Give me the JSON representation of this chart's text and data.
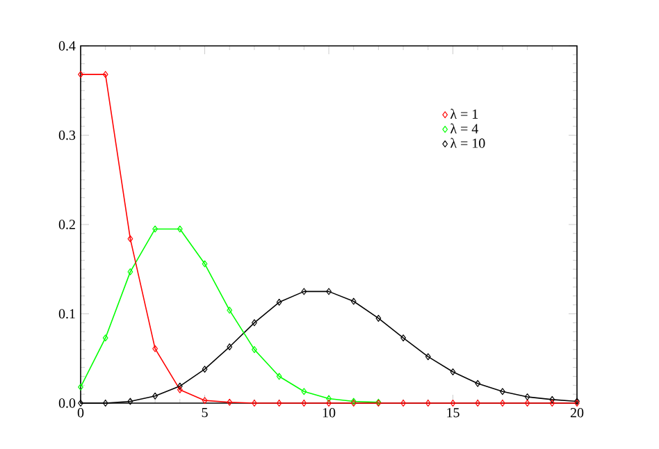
{
  "chart_data": {
    "type": "line",
    "marker": "diamond",
    "line_style": "solid",
    "legend": "top right",
    "x": [
      0,
      1,
      2,
      3,
      4,
      5,
      6,
      7,
      8,
      9,
      10,
      11,
      12,
      13,
      14,
      15,
      16,
      17,
      18,
      19,
      20
    ],
    "series": [
      {
        "name": "λ = 1",
        "color": "#ff0000",
        "values": [
          0.368,
          0.368,
          0.184,
          0.061,
          0.015,
          0.003,
          0.001,
          0,
          0,
          0,
          0,
          0,
          0,
          0,
          0,
          0,
          0,
          0,
          0,
          0,
          0
        ]
      },
      {
        "name": "λ = 4",
        "color": "#00ff00",
        "values": [
          0.018,
          0.073,
          0.147,
          0.195,
          0.195,
          0.156,
          0.104,
          0.06,
          0.03,
          0.013,
          0.005,
          0.002,
          0.001,
          null,
          null,
          null,
          null,
          null,
          null,
          null,
          null
        ]
      },
      {
        "name": "λ = 10",
        "color": "#000000",
        "values": [
          0,
          0,
          0.002,
          0.008,
          0.019,
          0.038,
          0.063,
          0.09,
          0.113,
          0.125,
          0.125,
          0.114,
          0.095,
          0.073,
          0.052,
          0.035,
          0.022,
          0.013,
          0.007,
          0.004,
          0.002
        ]
      }
    ],
    "xlim": [
      0,
      20
    ],
    "ylim": [
      0,
      0.4
    ],
    "xticks": [
      0,
      5,
      10,
      15,
      20
    ],
    "yticks": [
      {
        "value": 0,
        "label": "0.0"
      },
      {
        "value": 0.1,
        "label": "0.1"
      },
      {
        "value": 0.2,
        "label": "0.2"
      },
      {
        "value": 0.3,
        "label": "0.3"
      },
      {
        "value": 0.4,
        "label": "0.4"
      }
    ]
  }
}
